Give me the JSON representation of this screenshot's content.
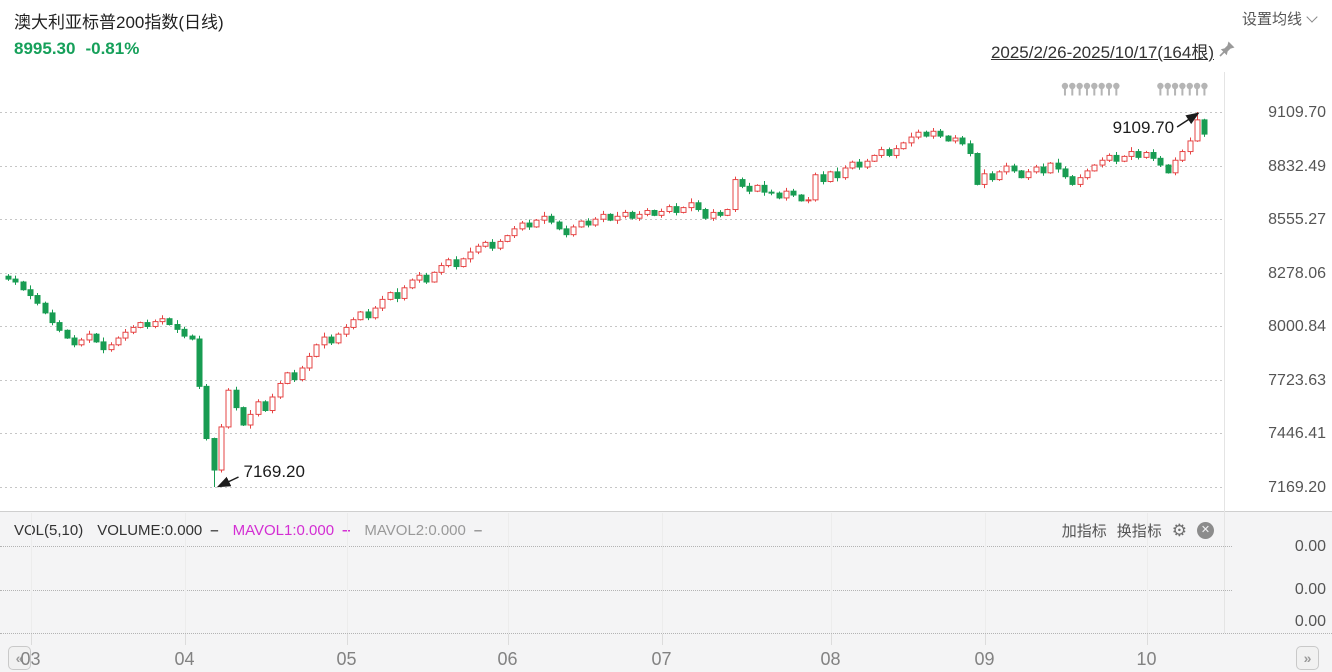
{
  "header": {
    "title": "澳大利亚标普200指数(日线)",
    "price": "8995.30",
    "change": "-0.81%",
    "ma_settings_label": "设置均线",
    "range_label": "2025/2/26-2025/10/17(164根)"
  },
  "volume_panel": {
    "indicator_label": "VOL(5,10)",
    "volume_label": "VOLUME:0.000",
    "legend_dash": "–",
    "mavol1_label": "MAVOL1:0.000",
    "mavol2_label": "MAVOL2:0.000",
    "add_indicator_label": "加指标",
    "switch_indicator_label": "换指标",
    "axis_labels": [
      "0.00",
      "0.00",
      "0.00"
    ]
  },
  "nav": {
    "prev": "«",
    "next": "»"
  },
  "colors": {
    "up": "#e64545",
    "down": "#189c52",
    "quote_green": "#16a05a",
    "mavol1": "#d32ed3",
    "mavol2": "#999999",
    "grid": "#c6c6c6",
    "marker_gray": "#b5b5b5",
    "annotation": "#1c1c1c"
  },
  "chart_data": {
    "type": "candlestick",
    "title": "澳大利亚标普200指数(日线)",
    "range_label": "2025/2/26-2025/10/17(164根)",
    "bar_count": 164,
    "last_price": 8995.3,
    "change_pct": -0.81,
    "y_axis": {
      "ticks": [
        "9109.70",
        "8832.49",
        "8555.27",
        "8278.06",
        "8000.84",
        "7723.63",
        "7446.41",
        "7169.20"
      ],
      "top_value": 9109.7,
      "bottom_value": 7169.2
    },
    "months": [
      {
        "label": "03",
        "index": 3
      },
      {
        "label": "04",
        "index": 24
      },
      {
        "label": "05",
        "index": 46
      },
      {
        "label": "06",
        "index": 68
      },
      {
        "label": "07",
        "index": 89
      },
      {
        "label": "08",
        "index": 112
      },
      {
        "label": "09",
        "index": 133
      },
      {
        "label": "10",
        "index": 155
      }
    ],
    "first_open": 8260,
    "open_rule": "prev_close",
    "closes": [
      8245,
      8230,
      8190,
      8160,
      8120,
      8070,
      8020,
      7980,
      7940,
      7905,
      7930,
      7960,
      7920,
      7880,
      7905,
      7940,
      7970,
      7995,
      8020,
      8000,
      8025,
      8040,
      8010,
      7985,
      7950,
      7935,
      7690,
      7420,
      7257,
      7480,
      7670,
      7580,
      7490,
      7545,
      7610,
      7565,
      7635,
      7705,
      7760,
      7725,
      7785,
      7845,
      7905,
      7945,
      7915,
      7960,
      7995,
      8035,
      8075,
      8045,
      8095,
      8140,
      8175,
      8145,
      8200,
      8240,
      8265,
      8230,
      8280,
      8315,
      8345,
      8310,
      8350,
      8385,
      8415,
      8435,
      8405,
      8440,
      8470,
      8505,
      8535,
      8515,
      8550,
      8570,
      8540,
      8505,
      8475,
      8515,
      8545,
      8525,
      8555,
      8580,
      8550,
      8570,
      8590,
      8560,
      8580,
      8600,
      8575,
      8595,
      8620,
      8590,
      8615,
      8640,
      8605,
      8560,
      8590,
      8575,
      8605,
      8760,
      8725,
      8700,
      8730,
      8695,
      8690,
      8665,
      8700,
      8680,
      8650,
      8655,
      8785,
      8750,
      8800,
      8770,
      8820,
      8850,
      8825,
      8855,
      8885,
      8915,
      8885,
      8920,
      8950,
      8980,
      9005,
      8985,
      9010,
      8985,
      8960,
      8975,
      8945,
      8895,
      8735,
      8790,
      8760,
      8800,
      8830,
      8805,
      8770,
      8800,
      8825,
      8795,
      8845,
      8815,
      8775,
      8735,
      8770,
      8805,
      8835,
      8860,
      8885,
      8855,
      8880,
      8905,
      8875,
      8900,
      8870,
      8835,
      8795,
      8860,
      8905,
      8960,
      9069,
      8995.3
    ],
    "wick_pattern": [
      18,
      30,
      10,
      38,
      22,
      14,
      28,
      20,
      8,
      25
    ],
    "specials": {
      "28": {
        "low": 7169.2
      },
      "162": {
        "high": 9109.7
      },
      "163": {
        "high": 9075,
        "low": 8981
      }
    },
    "annotations": [
      {
        "text": "7169.20",
        "index": 28,
        "type": "low"
      },
      {
        "text": "9109.70",
        "index": 162,
        "type": "high"
      }
    ],
    "event_marker_groups": [
      {
        "start_index": 144,
        "count": 8
      },
      {
        "start_index": 157,
        "count": 7
      }
    ],
    "volume_values_all_zero": true
  }
}
